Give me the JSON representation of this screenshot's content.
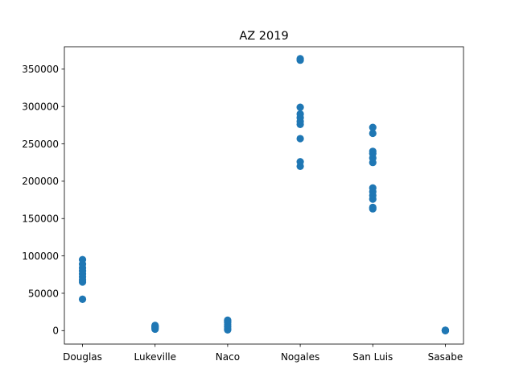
{
  "chart_data": {
    "type": "scatter",
    "title": "AZ 2019",
    "xlabel": "",
    "ylabel": "",
    "categories": [
      "Douglas",
      "Lukeville",
      "Naco",
      "Nogales",
      "San Luis",
      "Sasabe"
    ],
    "ylim": [
      -18000,
      380000
    ],
    "yticks": [
      0,
      50000,
      100000,
      150000,
      200000,
      250000,
      300000,
      350000
    ],
    "ytick_labels": [
      "0",
      "50000",
      "100000",
      "150000",
      "200000",
      "250000",
      "300000",
      "350000"
    ],
    "grid": false,
    "legend": "none",
    "marker_color": "#1f77b4",
    "series": [
      {
        "points": [
          {
            "x": "Douglas",
            "y": 42000
          },
          {
            "x": "Douglas",
            "y": 65000
          },
          {
            "x": "Douglas",
            "y": 68000
          },
          {
            "x": "Douglas",
            "y": 72000
          },
          {
            "x": "Douglas",
            "y": 76000
          },
          {
            "x": "Douglas",
            "y": 80000
          },
          {
            "x": "Douglas",
            "y": 84000
          },
          {
            "x": "Douglas",
            "y": 89000
          },
          {
            "x": "Douglas",
            "y": 95000
          },
          {
            "x": "Lukeville",
            "y": 2000
          },
          {
            "x": "Lukeville",
            "y": 3000
          },
          {
            "x": "Lukeville",
            "y": 4000
          },
          {
            "x": "Lukeville",
            "y": 5000
          },
          {
            "x": "Lukeville",
            "y": 6000
          },
          {
            "x": "Lukeville",
            "y": 7000
          },
          {
            "x": "Naco",
            "y": 1000
          },
          {
            "x": "Naco",
            "y": 2500
          },
          {
            "x": "Naco",
            "y": 5000
          },
          {
            "x": "Naco",
            "y": 8000
          },
          {
            "x": "Naco",
            "y": 11000
          },
          {
            "x": "Naco",
            "y": 13000
          },
          {
            "x": "Naco",
            "y": 14000
          },
          {
            "x": "Nogales",
            "y": 220000
          },
          {
            "x": "Nogales",
            "y": 226000
          },
          {
            "x": "Nogales",
            "y": 257000
          },
          {
            "x": "Nogales",
            "y": 276000
          },
          {
            "x": "Nogales",
            "y": 280000
          },
          {
            "x": "Nogales",
            "y": 285000
          },
          {
            "x": "Nogales",
            "y": 290000
          },
          {
            "x": "Nogales",
            "y": 299000
          },
          {
            "x": "Nogales",
            "y": 362000
          },
          {
            "x": "Nogales",
            "y": 364000
          },
          {
            "x": "San Luis",
            "y": 163000
          },
          {
            "x": "San Luis",
            "y": 165000
          },
          {
            "x": "San Luis",
            "y": 176000
          },
          {
            "x": "San Luis",
            "y": 181000
          },
          {
            "x": "San Luis",
            "y": 186000
          },
          {
            "x": "San Luis",
            "y": 191000
          },
          {
            "x": "San Luis",
            "y": 225000
          },
          {
            "x": "San Luis",
            "y": 231000
          },
          {
            "x": "San Luis",
            "y": 237000
          },
          {
            "x": "San Luis",
            "y": 240000
          },
          {
            "x": "San Luis",
            "y": 264000
          },
          {
            "x": "San Luis",
            "y": 272000
          },
          {
            "x": "Sasabe",
            "y": 0
          },
          {
            "x": "Sasabe",
            "y": 100
          },
          {
            "x": "Sasabe",
            "y": 200
          },
          {
            "x": "Sasabe",
            "y": 300
          },
          {
            "x": "Sasabe",
            "y": 400
          },
          {
            "x": "Sasabe",
            "y": 500
          }
        ]
      }
    ]
  }
}
